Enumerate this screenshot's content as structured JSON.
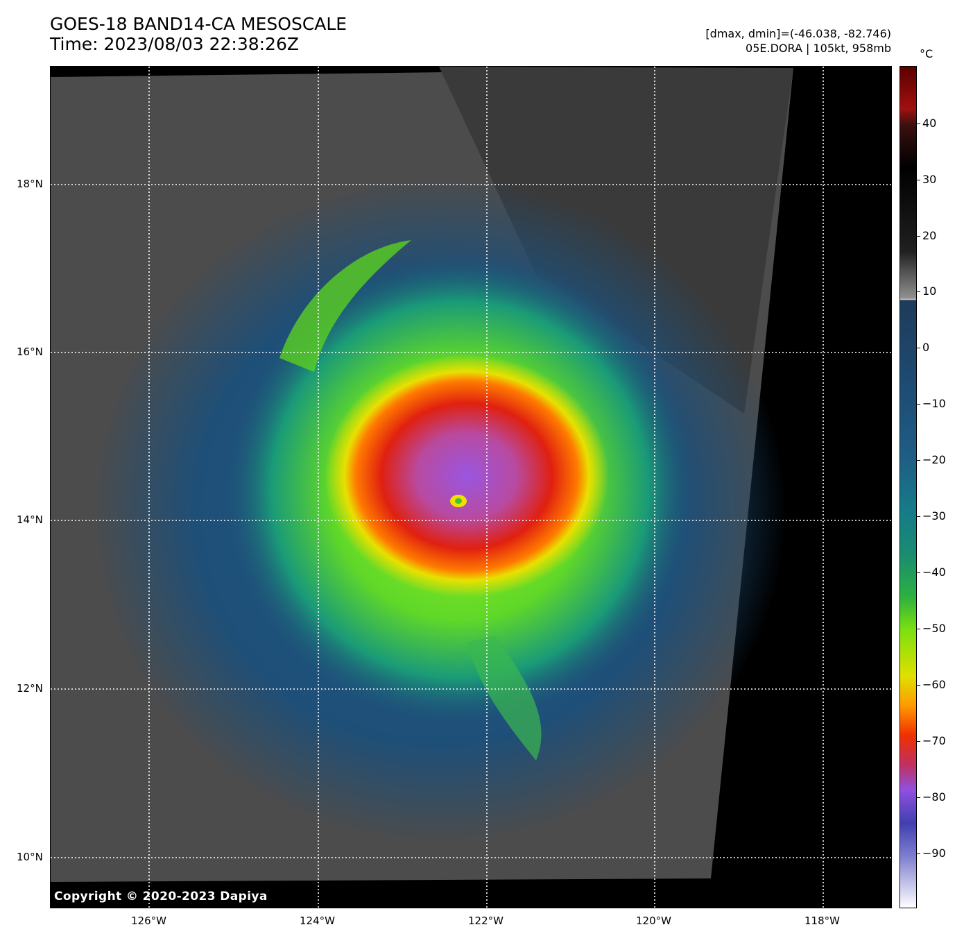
{
  "header": {
    "title_line1": "GOES-18 BAND14-CA MESOSCALE",
    "title_line2": "Time: 2023/08/03 22:38:26Z",
    "range_line": "[dmax, dmin]=(-46.038, -82.746)",
    "storm_line": "05E.DORA | 105kt, 958mb"
  },
  "map": {
    "copyright": "Copyright © 2020-2023 Dapiya",
    "lat_labels": [
      "18°N",
      "16°N",
      "14°N",
      "12°N",
      "10°N"
    ],
    "lon_labels": [
      "126°W",
      "124°W",
      "122°W",
      "120°W",
      "118°W"
    ],
    "eye_position": "near 14.2°N 122.3°W",
    "colors": {
      "no_data": "#000000",
      "clear": "#4a4a4a",
      "cold_cloud_blue": "#1e4f78",
      "green": "#4cd020",
      "yellow": "#e0e000",
      "red": "#e02010",
      "purple": "#9a56e0"
    }
  },
  "colorbar": {
    "unit": "°C",
    "ticks": [
      "40",
      "30",
      "20",
      "10",
      "0",
      "−10",
      "−20",
      "−30",
      "−40",
      "−50",
      "−60",
      "−70",
      "−80",
      "−90"
    ]
  }
}
